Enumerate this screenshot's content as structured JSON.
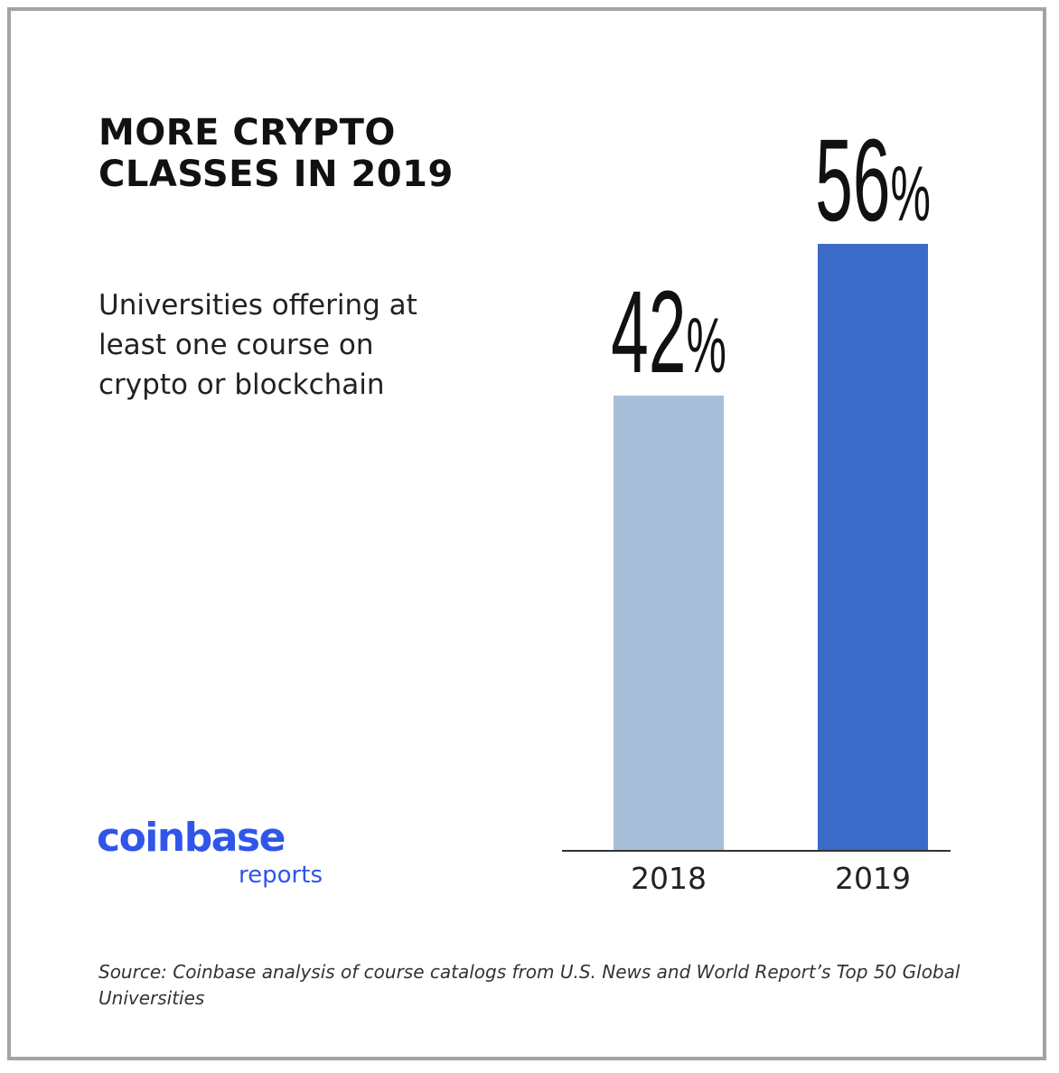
{
  "header": {
    "title": "MORE CRYPTO CLASSES IN 2019",
    "subtitle": "Universities offering at least one course on crypto or blockchain"
  },
  "logo": {
    "name": "coinbase",
    "tagline": "reports"
  },
  "footer": {
    "source": "Source: Coinbase analysis of course catalogs from U.S. News and World Report’s Top 50 Global Universities"
  },
  "colors": {
    "bar_2018": "#a9bed8",
    "bar_2019": "#3c6ac8",
    "brand": "#2f56e8",
    "text": "#111111",
    "baseline": "#333333",
    "frame": "#a3a3a3"
  },
  "chart_data": {
    "type": "bar",
    "categories": [
      "2018",
      "2019"
    ],
    "values": [
      42,
      56
    ],
    "value_labels": [
      "42%",
      "56%"
    ],
    "unit": "%",
    "ylim": [
      0,
      65
    ],
    "grid": false,
    "legend": "none",
    "title": "MORE CRYPTO CLASSES IN 2019",
    "xlabel": "",
    "ylabel": ""
  }
}
